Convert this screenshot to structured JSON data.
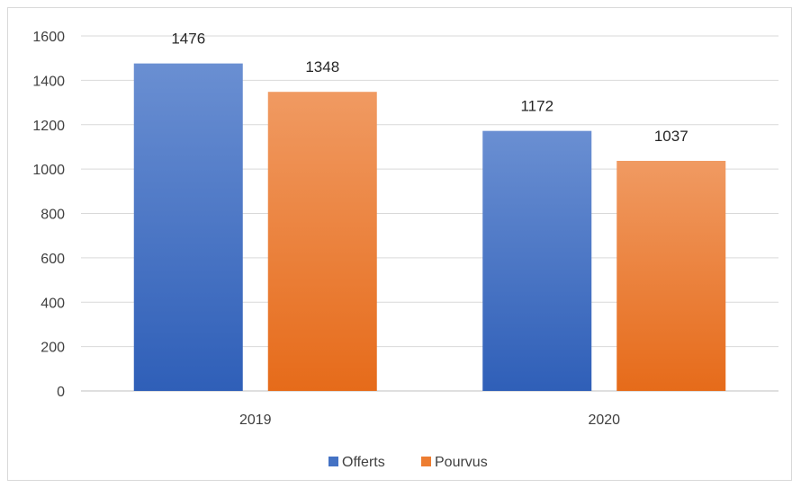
{
  "chart_data": {
    "type": "bar",
    "categories": [
      "2019",
      "2020"
    ],
    "series": [
      {
        "name": "Offerts",
        "values": [
          1476,
          1172
        ],
        "color": "#4472C4"
      },
      {
        "name": "Pourvus",
        "values": [
          1348,
          1037
        ],
        "color": "#ED7D31"
      }
    ],
    "title": "",
    "xlabel": "",
    "ylabel": "",
    "ylim": [
      0,
      1600
    ],
    "yticks": [
      0,
      200,
      400,
      600,
      800,
      1000,
      1200,
      1400,
      1600
    ],
    "grid": true,
    "legend_position": "bottom",
    "data_labels": true
  }
}
